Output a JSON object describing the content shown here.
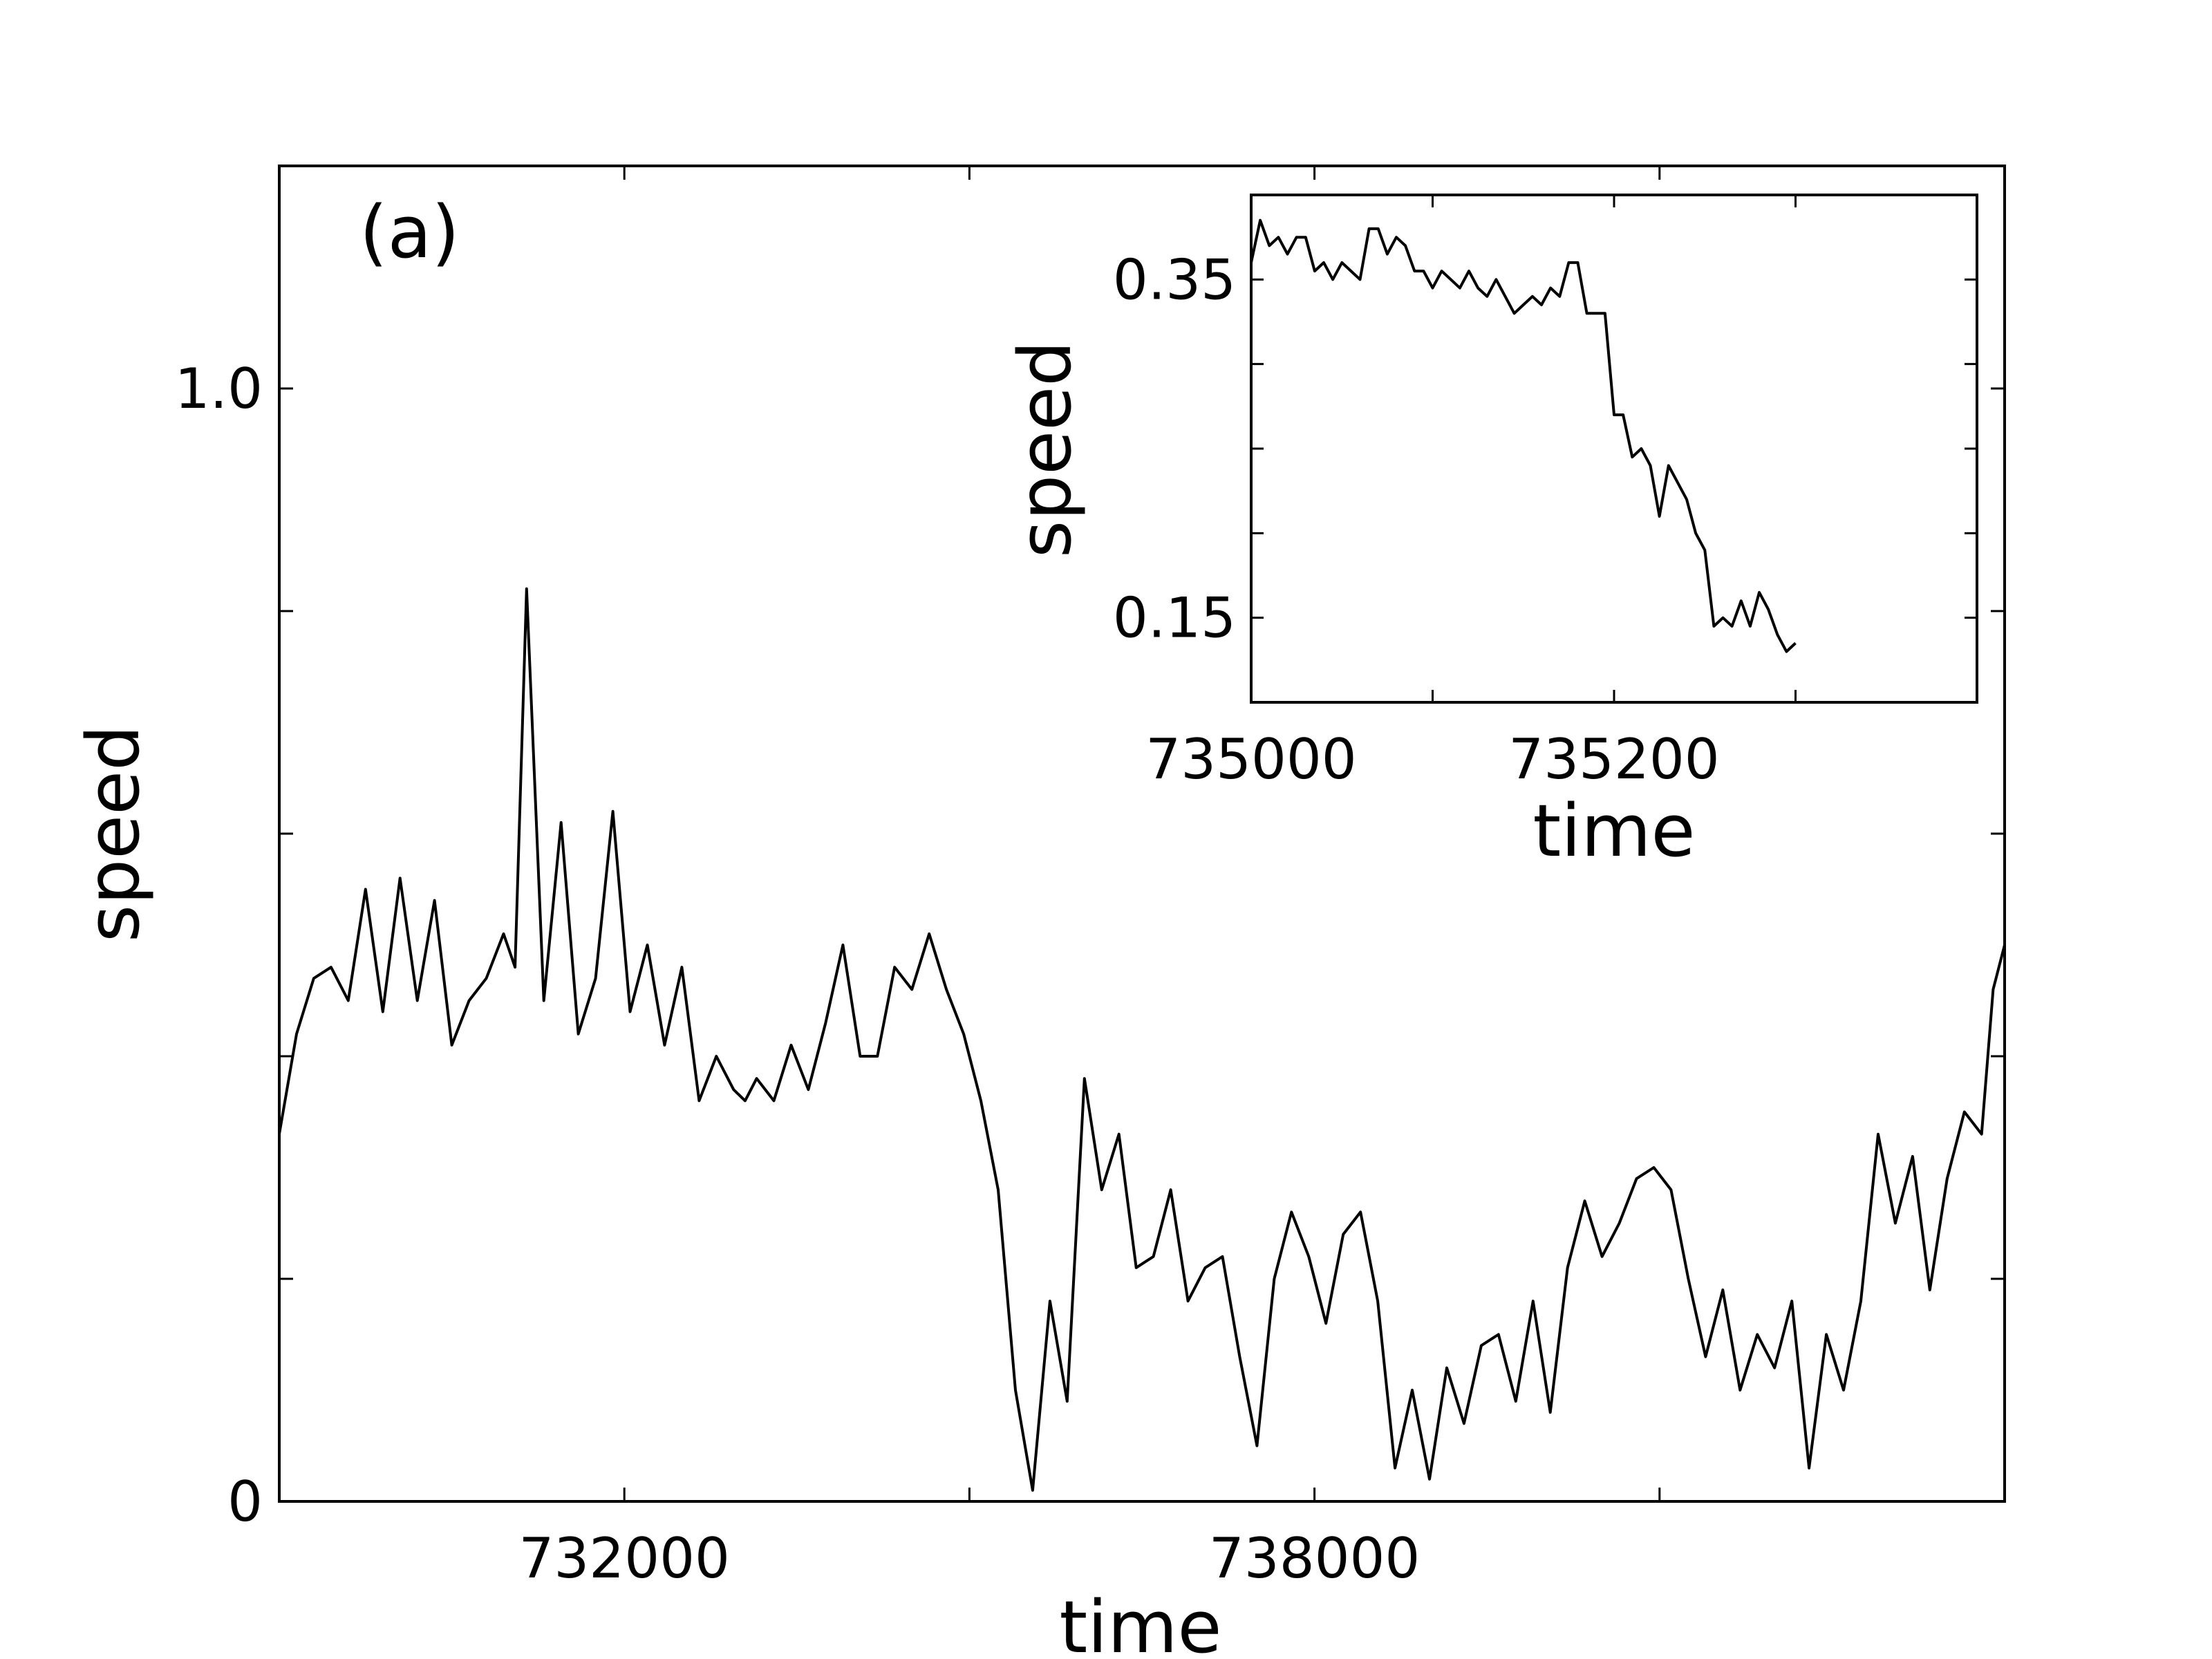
{
  "chart_data": [
    {
      "id": "main",
      "type": "line",
      "panel_label": "(a)",
      "title": "",
      "xlabel": "time",
      "ylabel": "speed",
      "xlim": [
        729000,
        744000
      ],
      "ylim": [
        0,
        1.2
      ],
      "x_ticks": [
        732000,
        735000,
        738000,
        741000
      ],
      "x_tick_labels": [
        "732000",
        "",
        "738000",
        ""
      ],
      "y_ticks": [
        0,
        0.2,
        0.4,
        0.6,
        0.8,
        1.0
      ],
      "y_tick_labels": [
        "0",
        "",
        "",
        "",
        "",
        "1.0"
      ],
      "grid": false,
      "line_color": "#000000",
      "series": [
        {
          "x": [
            729000,
            729150,
            729300,
            729450,
            729600,
            729750,
            729900,
            730050,
            730200,
            730350,
            730500,
            730650,
            730800,
            730950,
            731050,
            731150,
            731300,
            731450,
            731600,
            731750,
            731900,
            732050,
            732200,
            732350,
            732500,
            732650,
            732800,
            732950,
            733050,
            733150,
            733300,
            733450,
            733600,
            733750,
            733900,
            734050,
            734200,
            734350,
            734500,
            734650,
            734800,
            734950,
            735100,
            735250,
            735400,
            735550,
            735700,
            735850,
            736000,
            736150,
            736300,
            736450,
            736600,
            736750,
            736900,
            737050,
            737200,
            737350,
            737500,
            737650,
            737800,
            737950,
            738100,
            738250,
            738400,
            738550,
            738700,
            738850,
            739000,
            739150,
            739300,
            739450,
            739600,
            739750,
            739900,
            740050,
            740200,
            740350,
            740500,
            740650,
            740800,
            740950,
            741100,
            741250,
            741400,
            741550,
            741700,
            741850,
            742000,
            742150,
            742300,
            742450,
            742600,
            742750,
            742900,
            743050,
            743200,
            743350,
            743500,
            743650,
            743800,
            743900,
            744000
          ],
          "y": [
            0.33,
            0.42,
            0.47,
            0.48,
            0.45,
            0.55,
            0.44,
            0.56,
            0.45,
            0.54,
            0.41,
            0.45,
            0.47,
            0.51,
            0.48,
            0.82,
            0.45,
            0.61,
            0.42,
            0.47,
            0.62,
            0.44,
            0.5,
            0.41,
            0.48,
            0.36,
            0.4,
            0.37,
            0.36,
            0.38,
            0.36,
            0.41,
            0.37,
            0.43,
            0.5,
            0.4,
            0.4,
            0.48,
            0.46,
            0.51,
            0.46,
            0.42,
            0.36,
            0.28,
            0.1,
            0.01,
            0.18,
            0.09,
            0.38,
            0.28,
            0.33,
            0.21,
            0.22,
            0.28,
            0.18,
            0.21,
            0.22,
            0.13,
            0.05,
            0.2,
            0.26,
            0.22,
            0.16,
            0.24,
            0.26,
            0.18,
            0.03,
            0.1,
            0.02,
            0.12,
            0.07,
            0.14,
            0.15,
            0.09,
            0.18,
            0.08,
            0.21,
            0.27,
            0.22,
            0.25,
            0.29,
            0.3,
            0.28,
            0.2,
            0.13,
            0.19,
            0.1,
            0.15,
            0.12,
            0.18,
            0.03,
            0.15,
            0.1,
            0.18,
            0.33,
            0.25,
            0.31,
            0.19,
            0.29,
            0.35,
            0.33,
            0.46,
            0.5
          ],
          "values_note": ""
        }
      ]
    },
    {
      "id": "inset",
      "type": "line",
      "title": "",
      "xlabel": "time",
      "ylabel": "speed",
      "xlim": [
        735000,
        735400
      ],
      "ylim": [
        0.1,
        0.4
      ],
      "x_ticks": [
        735000,
        735100,
        735200,
        735300,
        735400
      ],
      "x_tick_labels": [
        "735000",
        "",
        "735200",
        "",
        ""
      ],
      "y_ticks": [
        0.15,
        0.2,
        0.25,
        0.3,
        0.35
      ],
      "y_tick_labels": [
        "0.15",
        "",
        "",
        "",
        "0.35"
      ],
      "grid": false,
      "line_color": "#000000",
      "series": [
        {
          "x": [
            735000,
            735005,
            735010,
            735015,
            735020,
            735025,
            735030,
            735035,
            735040,
            735045,
            735050,
            735055,
            735060,
            735065,
            735070,
            735075,
            735080,
            735085,
            735090,
            735095,
            735100,
            735105,
            735110,
            735115,
            735120,
            735125,
            735130,
            735135,
            735140,
            735145,
            735150,
            735155,
            735160,
            735165,
            735170,
            735175,
            735180,
            735185,
            735190,
            735195,
            735200,
            735205,
            735210,
            735215,
            735220,
            735225,
            735230,
            735235,
            735240,
            735245,
            735250,
            735255,
            735260,
            735265,
            735270,
            735275,
            735280,
            735285,
            735290,
            735295,
            735300
          ],
          "y": [
            0.36,
            0.385,
            0.37,
            0.375,
            0.365,
            0.375,
            0.375,
            0.355,
            0.36,
            0.35,
            0.36,
            0.355,
            0.35,
            0.38,
            0.38,
            0.365,
            0.375,
            0.37,
            0.355,
            0.355,
            0.345,
            0.355,
            0.35,
            0.345,
            0.355,
            0.345,
            0.34,
            0.35,
            0.34,
            0.33,
            0.335,
            0.34,
            0.335,
            0.345,
            0.34,
            0.36,
            0.36,
            0.33,
            0.33,
            0.33,
            0.27,
            0.27,
            0.245,
            0.25,
            0.24,
            0.21,
            0.24,
            0.23,
            0.22,
            0.2,
            0.19,
            0.145,
            0.15,
            0.145,
            0.16,
            0.145,
            0.165,
            0.155,
            0.14,
            0.13,
            0.135
          ],
          "values_note": ""
        }
      ]
    }
  ]
}
